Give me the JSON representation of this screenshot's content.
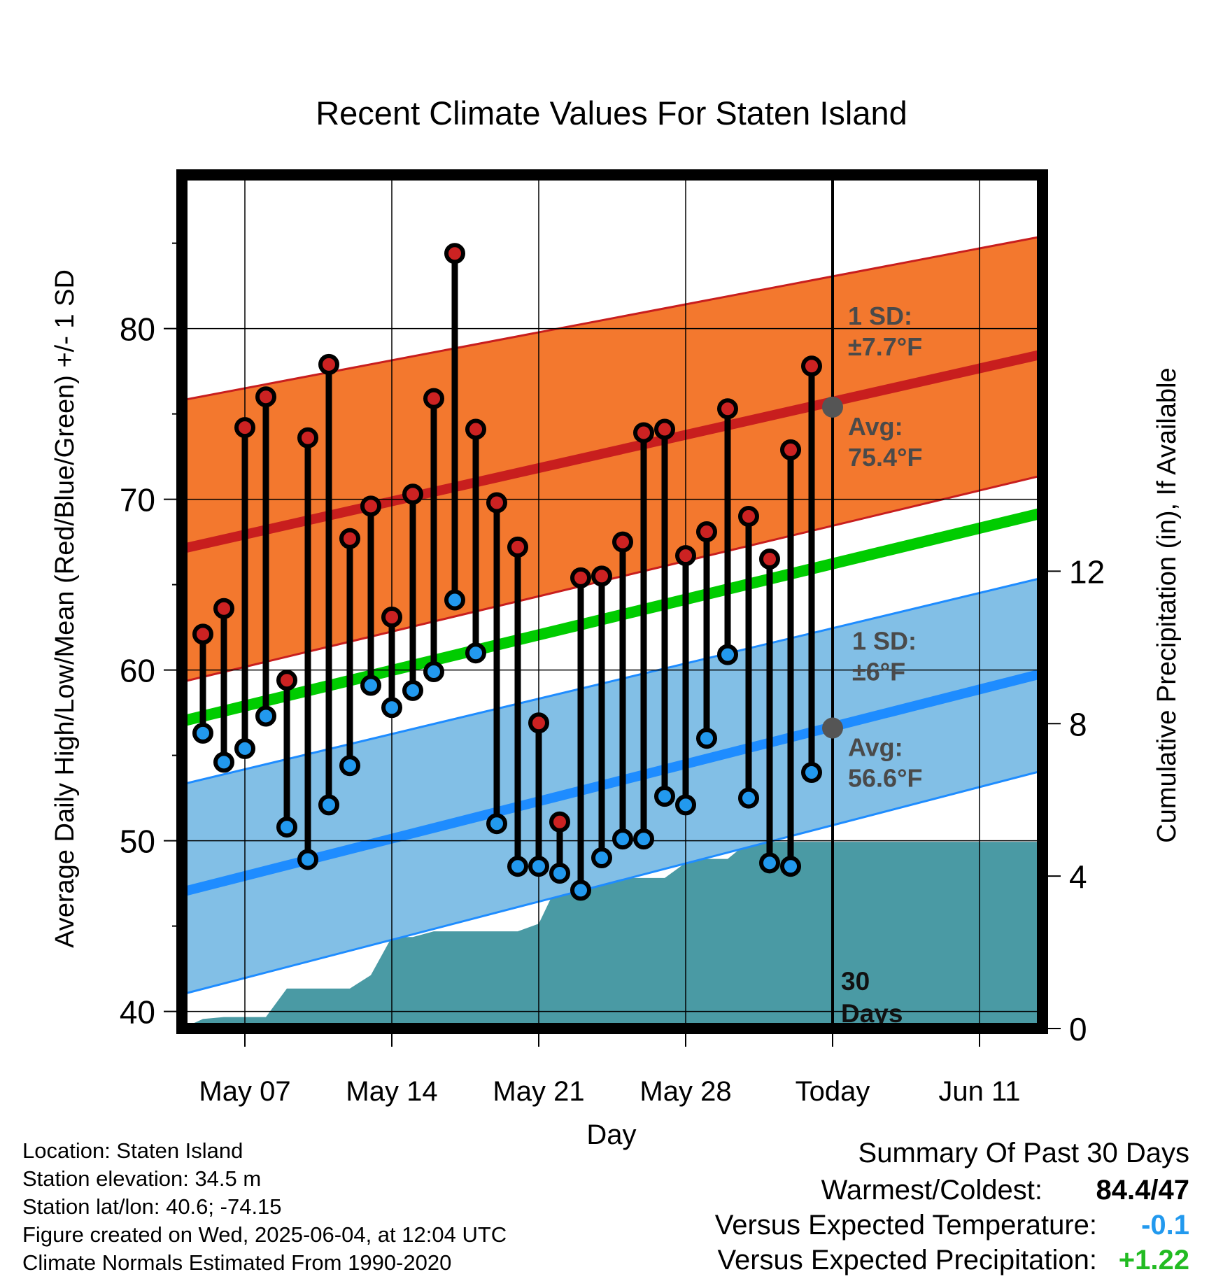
{
  "chart_data": {
    "type": "line",
    "title": "Recent Climate Values For Staten Island",
    "xlabel": "Day",
    "ylabel": "Average Daily High/Low/Mean (Red/Blue/Green) +/- 1 SD",
    "y2label": "Cumulative Precipitation (in), If Available",
    "ylim": [
      39,
      89
    ],
    "y2lim": [
      0,
      22.4
    ],
    "xlim": [
      "2025-05-04",
      "2025-06-14"
    ],
    "x_ticks": [
      {
        "date": "2025-05-07",
        "label": "May 07"
      },
      {
        "date": "2025-05-14",
        "label": "May 14"
      },
      {
        "date": "2025-05-21",
        "label": "May 21"
      },
      {
        "date": "2025-05-28",
        "label": "May 28"
      },
      {
        "date": "2025-06-04",
        "label": "Today"
      },
      {
        "date": "2025-06-11",
        "label": "Jun 11"
      }
    ],
    "y_ticks": [
      40,
      50,
      60,
      70,
      80
    ],
    "y2_ticks": [
      0,
      4,
      8,
      12
    ],
    "grid": true,
    "today": "2025-06-04",
    "days_label": "30\nDays",
    "normals": {
      "dates": [
        "2025-05-04",
        "2025-06-14"
      ],
      "high_avg": [
        67.1,
        78.5
      ],
      "high_band": [
        [
          59.3,
          75.8
        ],
        [
          71.4,
          85.4
        ]
      ],
      "mean": [
        57.0,
        69.2
      ],
      "low_avg": [
        47.0,
        59.8
      ],
      "low_band": [
        [
          41.0,
          53.3
        ],
        [
          54.1,
          65.4
        ]
      ]
    },
    "series": [
      {
        "name": "High",
        "values": [
          62.1,
          63.6,
          74.2,
          76.0,
          59.4,
          73.6,
          77.9,
          67.7,
          69.6,
          63.1,
          70.3,
          75.9,
          84.4,
          74.1,
          69.8,
          67.2,
          56.9,
          51.1,
          65.4,
          65.5,
          67.5,
          73.9,
          74.1,
          66.7,
          68.1,
          75.3,
          69.0,
          66.5,
          72.9,
          77.8
        ]
      },
      {
        "name": "Low",
        "values": [
          56.3,
          54.6,
          55.4,
          57.3,
          50.8,
          48.9,
          52.1,
          54.4,
          59.1,
          57.8,
          58.8,
          59.9,
          64.1,
          61.0,
          51.0,
          48.5,
          48.5,
          48.1,
          47.1,
          49.0,
          50.1,
          50.1,
          52.6,
          52.1,
          56.0,
          60.9,
          52.5,
          48.7,
          48.5,
          54.0
        ]
      }
    ],
    "dates": [
      "2025-05-05",
      "2025-05-06",
      "2025-05-07",
      "2025-05-08",
      "2025-05-09",
      "2025-05-10",
      "2025-05-11",
      "2025-05-12",
      "2025-05-13",
      "2025-05-14",
      "2025-05-15",
      "2025-05-16",
      "2025-05-17",
      "2025-05-18",
      "2025-05-19",
      "2025-05-20",
      "2025-05-21",
      "2025-05-22",
      "2025-05-23",
      "2025-05-24",
      "2025-05-25",
      "2025-05-26",
      "2025-05-27",
      "2025-05-28",
      "2025-05-29",
      "2025-05-30",
      "2025-05-31",
      "2025-06-01",
      "2025-06-02",
      "2025-06-03"
    ],
    "precip_cumulative": {
      "dates": [
        "2025-05-04",
        "2025-05-05",
        "2025-05-06",
        "2025-05-07",
        "2025-05-08",
        "2025-05-09",
        "2025-05-10",
        "2025-05-11",
        "2025-05-12",
        "2025-05-13",
        "2025-05-14",
        "2025-05-15",
        "2025-05-16",
        "2025-05-17",
        "2025-05-18",
        "2025-05-19",
        "2025-05-20",
        "2025-05-21",
        "2025-05-22",
        "2025-05-23",
        "2025-05-24",
        "2025-05-25",
        "2025-05-26",
        "2025-05-27",
        "2025-05-28",
        "2025-05-29",
        "2025-05-30",
        "2025-05-31",
        "2025-06-01",
        "2025-06-02",
        "2025-06-03",
        "2025-06-04",
        "2025-06-14"
      ],
      "values": [
        0.0,
        0.25,
        0.3,
        0.3,
        0.3,
        1.05,
        1.05,
        1.05,
        1.05,
        1.4,
        2.4,
        2.4,
        2.55,
        2.55,
        2.55,
        2.55,
        2.55,
        2.75,
        3.9,
        3.9,
        3.95,
        3.95,
        3.95,
        3.95,
        4.35,
        4.45,
        4.45,
        4.9,
        4.9,
        4.9,
        4.9,
        4.9,
        4.9
      ]
    },
    "annotations": {
      "high_sd": [
        "1 SD:",
        "±7.7°F"
      ],
      "high_avg": [
        "Avg:",
        "75.4°F"
      ],
      "low_sd": [
        "1 SD:",
        "±6°F"
      ],
      "low_avg": [
        "Avg:",
        "56.6°F"
      ],
      "today_high_avg": 75.4,
      "today_low_avg": 56.6
    },
    "colors": {
      "high_band": "#f3782e",
      "high_line": "#c81e1e",
      "mean_line": "#00cc00",
      "low_band": "#82bfe6",
      "low_line": "#1e8cff",
      "precip": "#4a9aa4",
      "high_marker": "#cc2222",
      "low_marker": "#2299ee",
      "annotation": "#4a4a4a"
    }
  },
  "footer": {
    "location": "Location: Staten Island",
    "elevation": "Station elevation: 34.5 m",
    "latlon": "Station lat/lon: 40.6; -74.15",
    "created": "Figure created on Wed, 2025-06-04, at 12:04 UTC",
    "normals": "Climate Normals Estimated From 1990-2020"
  },
  "summary": {
    "title": "Summary Of Past 30 Days",
    "warmest_label": "Warmest/Coldest:",
    "warmest_value": "84.4/47",
    "temp_label": "Versus Expected Temperature:",
    "temp_value": "-0.1",
    "temp_color": "#2299ee",
    "precip_label": "Versus Expected Precipitation:",
    "precip_value": "+1.22",
    "precip_color": "#22bb22"
  }
}
